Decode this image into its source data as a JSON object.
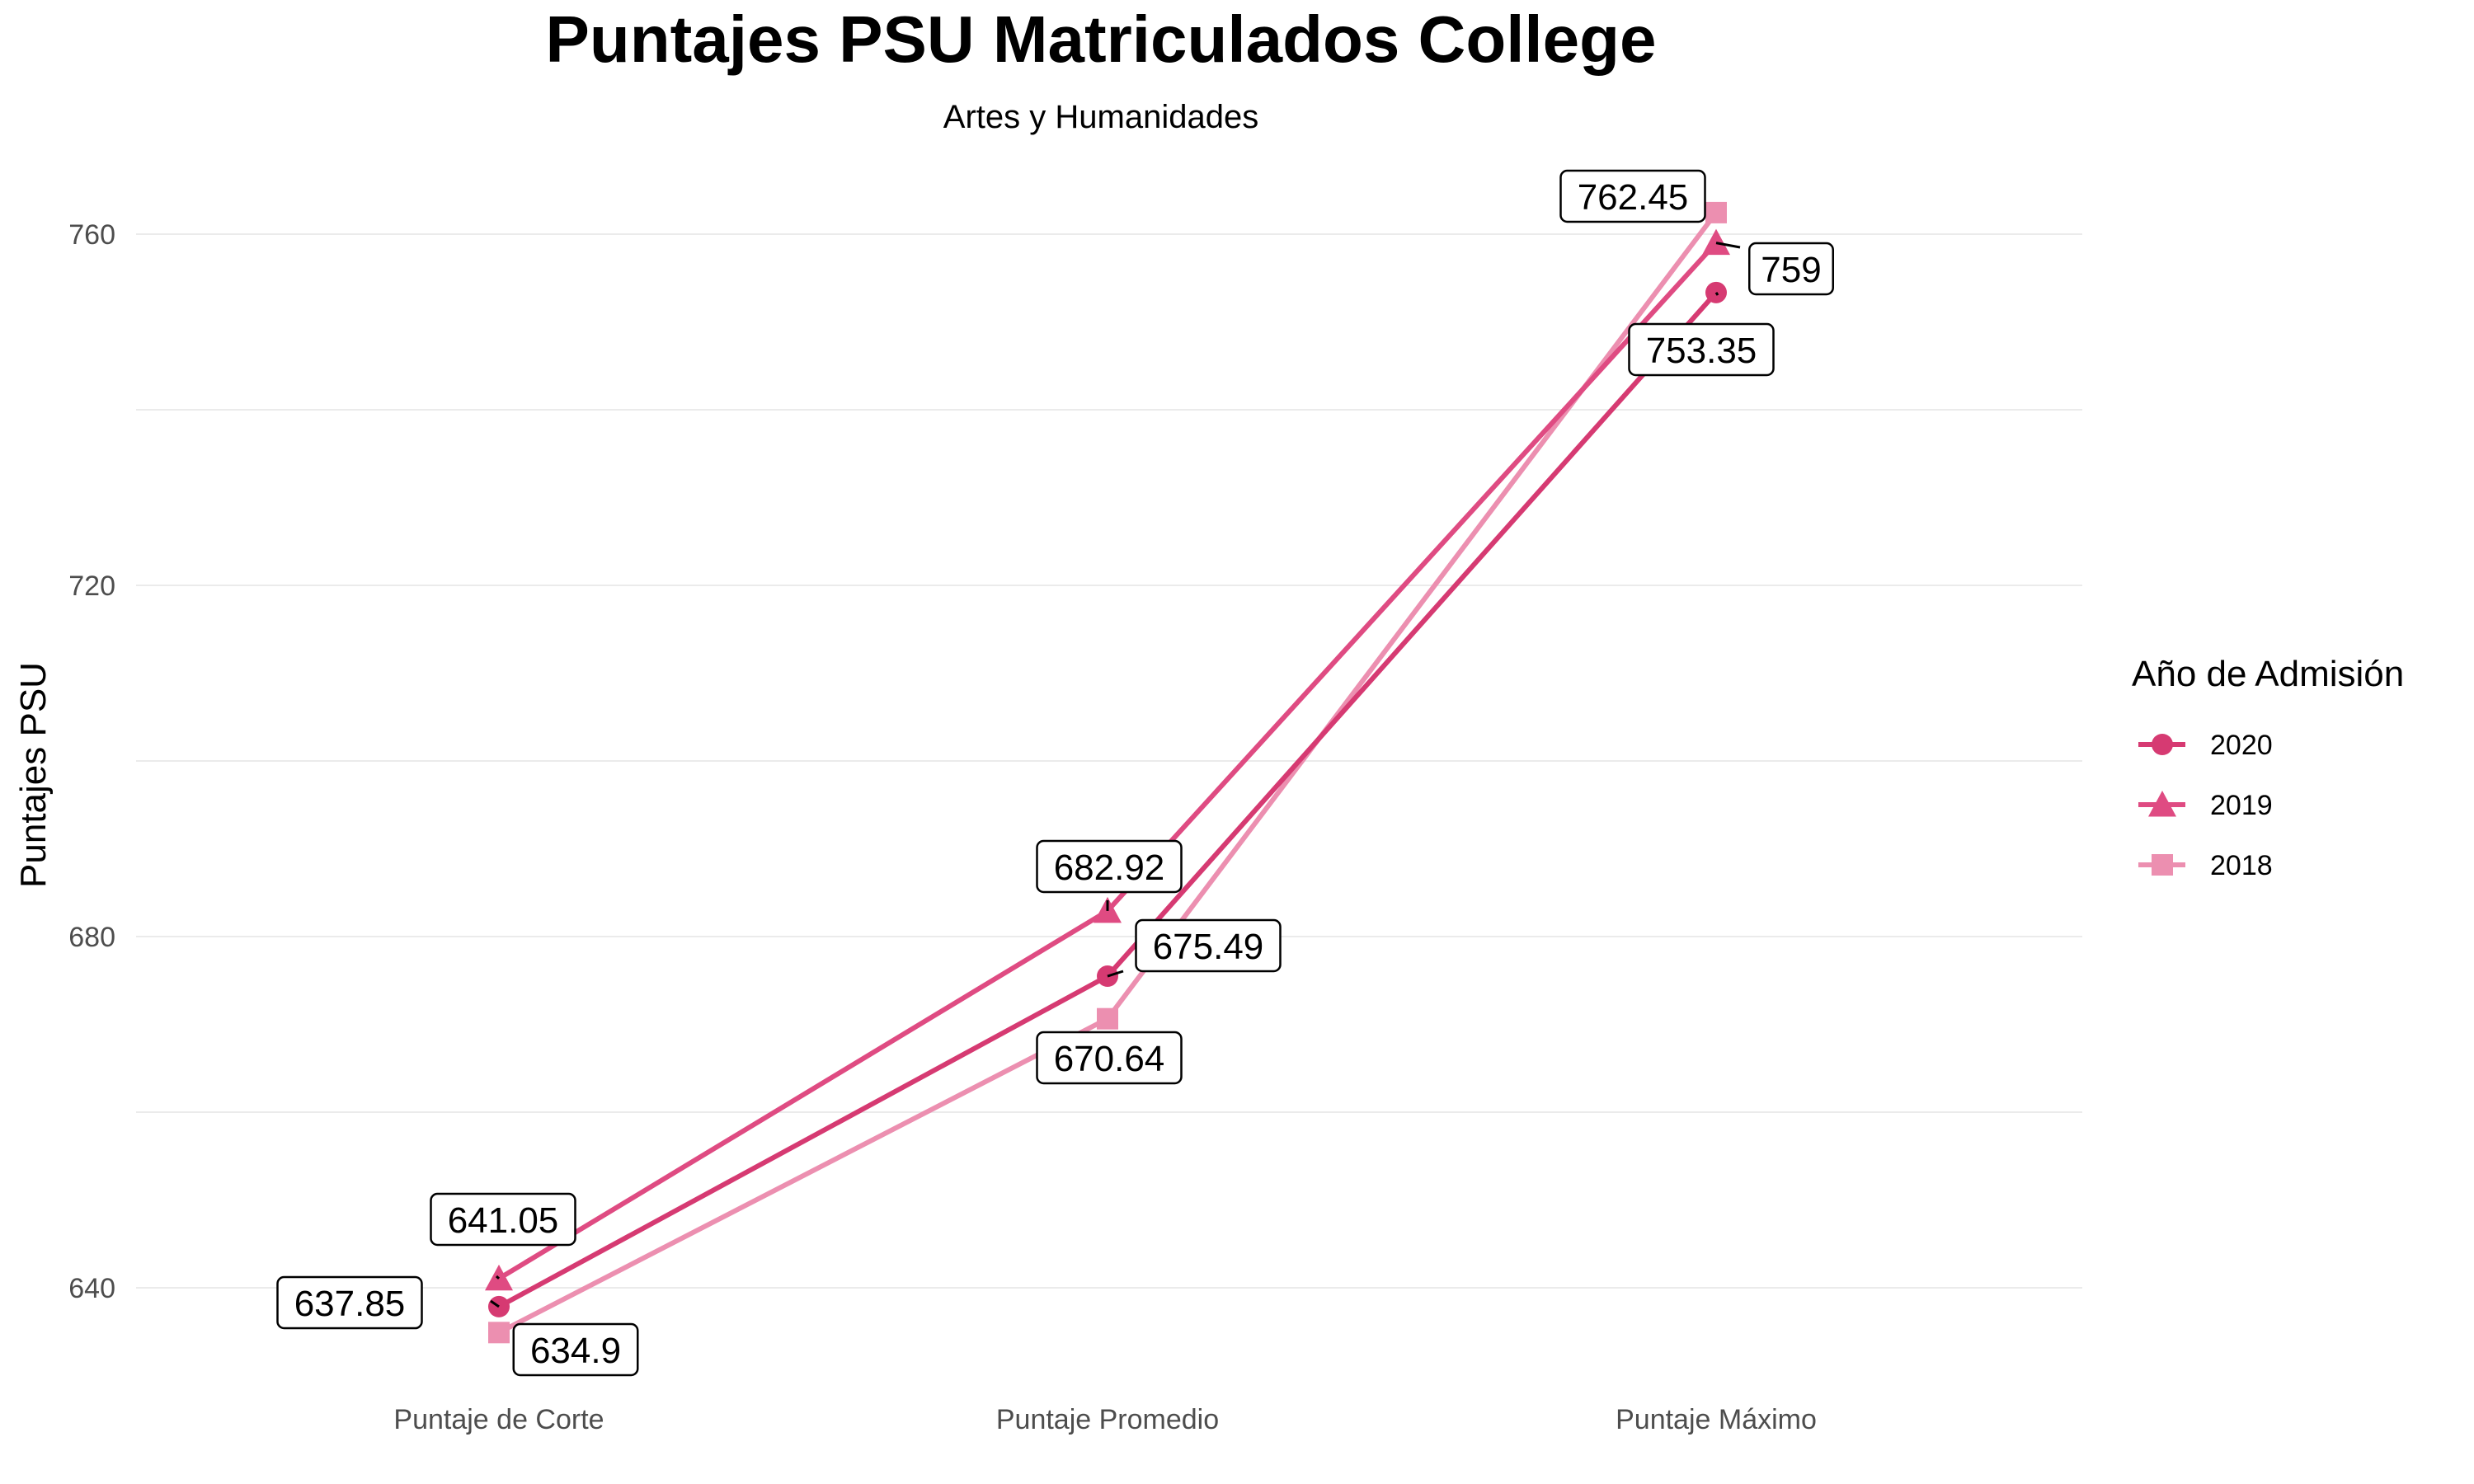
{
  "chart_data": {
    "type": "line",
    "title": "Puntajes PSU Matriculados College",
    "subtitle": "Artes y Humanidades",
    "xlabel": "",
    "ylabel": "Puntajes PSU",
    "categories": [
      "Puntaje de Corte",
      "Puntaje Promedio",
      "Puntaje Máximo"
    ],
    "ylim": [
      630,
      770
    ],
    "yticks": [
      640,
      680,
      720,
      760
    ],
    "grid": true,
    "legend": {
      "title": "Año de Admisión",
      "placement": "right"
    },
    "series": [
      {
        "name": "2020",
        "values": [
          637.85,
          675.49,
          753.35
        ],
        "labels": [
          "637.85",
          "675.49",
          "753.35"
        ],
        "color": "#D63A72",
        "marker": "circle"
      },
      {
        "name": "2019",
        "values": [
          641.05,
          682.92,
          759
        ],
        "labels": [
          "641.05",
          "682.92",
          "759"
        ],
        "color": "#DF4B82",
        "marker": "triangle"
      },
      {
        "name": "2018",
        "values": [
          634.9,
          670.64,
          762.45
        ],
        "labels": [
          "634.9",
          "670.64",
          "762.45"
        ],
        "color": "#EC8FB0",
        "marker": "square"
      }
    ]
  }
}
